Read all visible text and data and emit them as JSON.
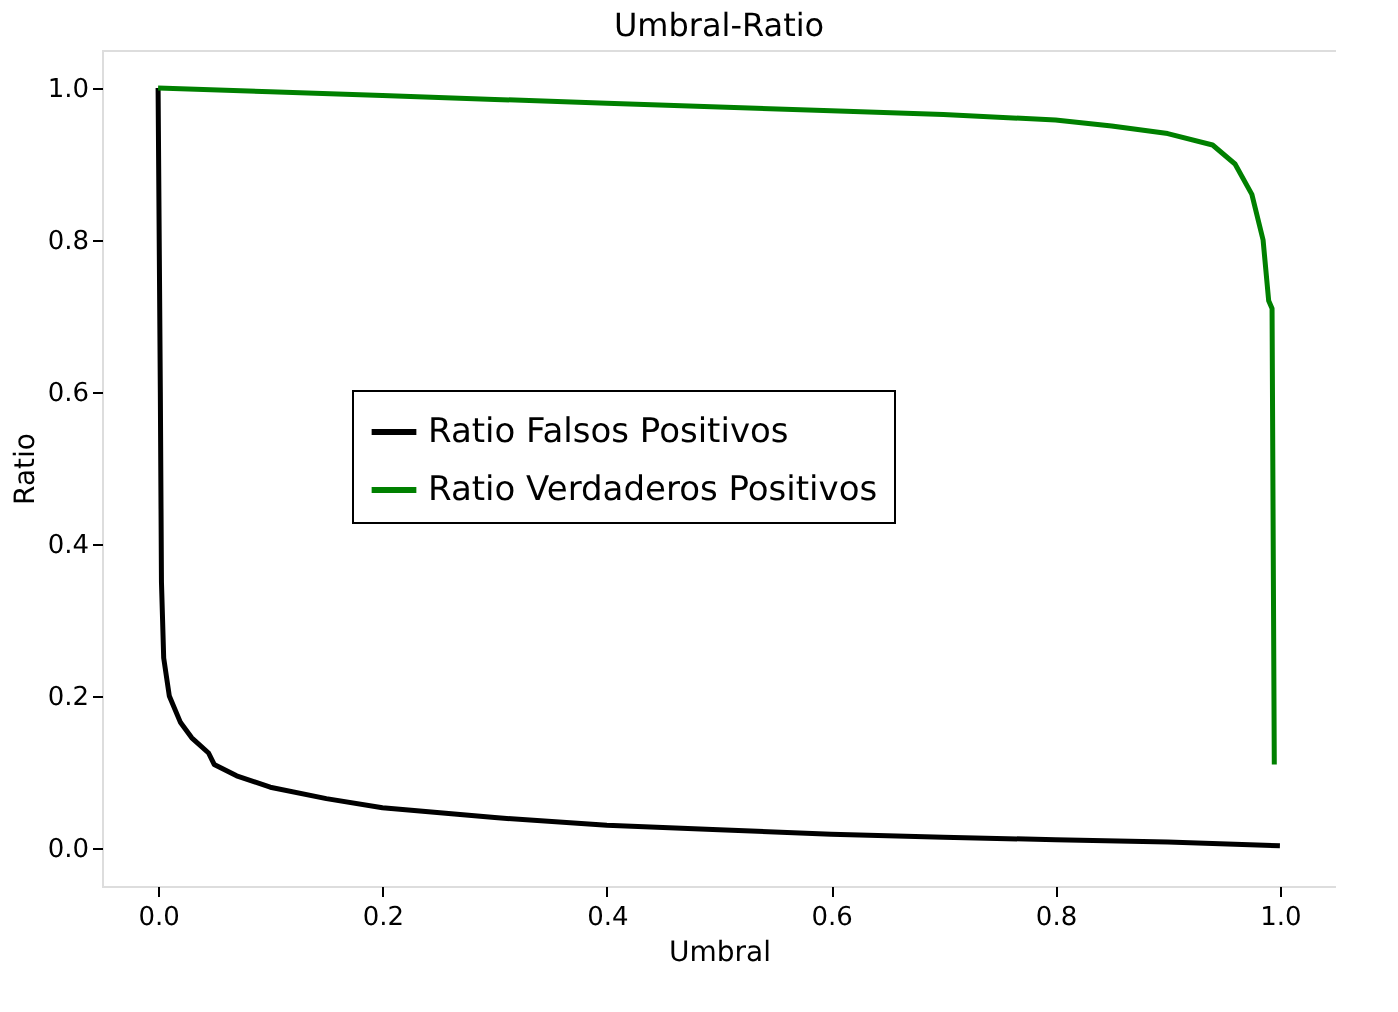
{
  "chart_data": {
    "type": "line",
    "title": "Umbral-Ratio",
    "xlabel": "Umbral",
    "ylabel": "Ratio",
    "xlim": [
      -0.05,
      1.05
    ],
    "ylim": [
      -0.05,
      1.05
    ],
    "xticks": [
      {
        "value": 0,
        "label": "0.0"
      },
      0.2,
      0.4,
      0.6,
      0.8,
      {
        "value": 1,
        "label": "1.0"
      }
    ],
    "yticks": [
      {
        "value": 0,
        "label": "0.0"
      },
      0.2,
      0.4,
      0.6,
      0.8,
      {
        "value": 1,
        "label": "1.0"
      }
    ],
    "grid": false,
    "legend": "center",
    "marker": "none",
    "line_style": "solid",
    "series": [
      {
        "name": "Ratio Falsos Positivos",
        "color": "#000000",
        "x": [
          0,
          0.002,
          0.003,
          0.005,
          0.01,
          0.02,
          0.03,
          0.045,
          0.05,
          0.07,
          0.1,
          0.15,
          0.2,
          0.3,
          0.4,
          0.5,
          0.6,
          0.7,
          0.8,
          0.9,
          1.0
        ],
        "values": [
          1.0,
          0.6,
          0.35,
          0.25,
          0.2,
          0.165,
          0.145,
          0.125,
          0.11,
          0.095,
          0.08,
          0.065,
          0.053,
          0.04,
          0.03,
          0.024,
          0.018,
          0.014,
          0.011,
          0.008,
          0.003
        ]
      },
      {
        "name": "Ratio Verdaderos Positivos",
        "color": "#008000",
        "x": [
          0,
          0.1,
          0.2,
          0.3,
          0.4,
          0.5,
          0.6,
          0.7,
          0.8,
          0.85,
          0.9,
          0.94,
          0.96,
          0.975,
          0.985,
          0.99,
          0.993,
          0.995
        ],
        "values": [
          1.0,
          0.995,
          0.99,
          0.985,
          0.98,
          0.975,
          0.97,
          0.965,
          0.958,
          0.95,
          0.94,
          0.925,
          0.9,
          0.86,
          0.8,
          0.72,
          0.71,
          0.11
        ]
      }
    ]
  }
}
